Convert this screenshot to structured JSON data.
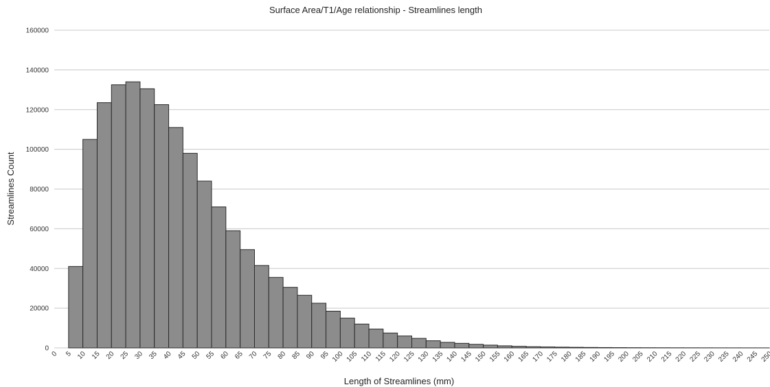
{
  "chart_data": {
    "type": "bar",
    "title": "Surface Area/T1/Age relationship - Streamlines length",
    "xlabel": "Length of Streamlines (mm)",
    "ylabel": "Streamlines Count",
    "ylim": [
      0,
      160000
    ],
    "yticks": [
      "0",
      "20000",
      "40000",
      "60000",
      "80000",
      "100000",
      "120000",
      "140000",
      "160000"
    ],
    "xticks": [
      "0",
      "5",
      "10",
      "15",
      "20",
      "25",
      "30",
      "35",
      "40",
      "45",
      "50",
      "55",
      "60",
      "65",
      "70",
      "75",
      "80",
      "85",
      "90",
      "95",
      "100",
      "105",
      "110",
      "115",
      "120",
      "125",
      "130",
      "135",
      "140",
      "145",
      "150",
      "155",
      "160",
      "165",
      "170",
      "175",
      "180",
      "185",
      "190",
      "195",
      "200",
      "205",
      "210",
      "215",
      "220",
      "225",
      "230",
      "235",
      "240",
      "245",
      "250"
    ],
    "bins_lower_edges": [
      5,
      10,
      15,
      20,
      25,
      30,
      35,
      40,
      45,
      50,
      55,
      60,
      65,
      70,
      75,
      80,
      85,
      90,
      95,
      100,
      105,
      110,
      115,
      120,
      125,
      130,
      135,
      140,
      145,
      150,
      155,
      160,
      165,
      170,
      175,
      180,
      185,
      190,
      195,
      200,
      205,
      210,
      215,
      220,
      225,
      230,
      235,
      240,
      245
    ],
    "values": [
      41000,
      105000,
      123500,
      132500,
      134000,
      130500,
      122500,
      111000,
      98000,
      84000,
      71000,
      59000,
      49500,
      41500,
      35500,
      30500,
      26500,
      22500,
      18500,
      15000,
      12000,
      9500,
      7500,
      6000,
      4800,
      3600,
      2800,
      2300,
      1800,
      1400,
      1050,
      800,
      600,
      480,
      380,
      300,
      240,
      190,
      150,
      120,
      100,
      85,
      70,
      60,
      50,
      40,
      35,
      30,
      25
    ],
    "grid": "horizontal",
    "legend": "none"
  }
}
